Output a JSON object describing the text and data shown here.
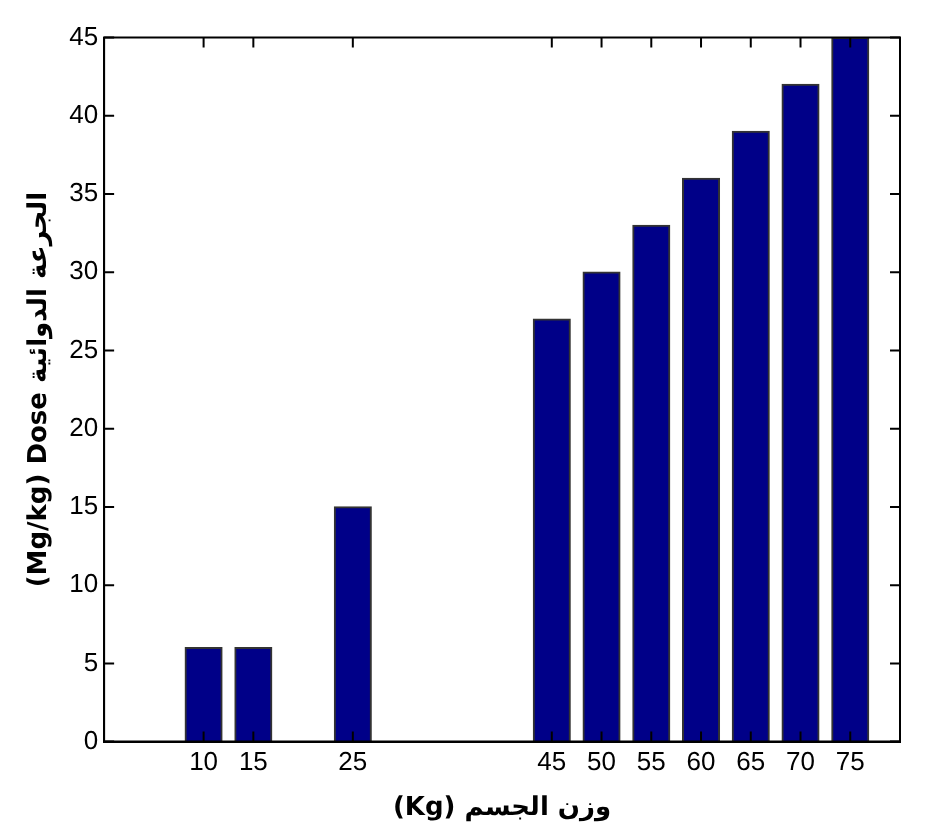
{
  "chart_data": {
    "type": "bar",
    "xlabel": "(Kg) وزن الجسم",
    "ylabel": "(Mg/kg) Dose الجرعة الدوائية",
    "x": [
      10,
      15,
      25,
      45,
      50,
      55,
      60,
      65,
      70,
      75
    ],
    "values": [
      6,
      6,
      15,
      27,
      30,
      33,
      36,
      39,
      42,
      45
    ],
    "color": "#000088",
    "xlim": [
      0,
      80
    ],
    "xticks": [
      10,
      15,
      25,
      45,
      50,
      55,
      60,
      65,
      70,
      75
    ],
    "ylim": [
      0,
      45
    ],
    "yticks": [
      0,
      5,
      10,
      15,
      20,
      25,
      30,
      35,
      40,
      45
    ],
    "grid": false,
    "legend": false
  }
}
